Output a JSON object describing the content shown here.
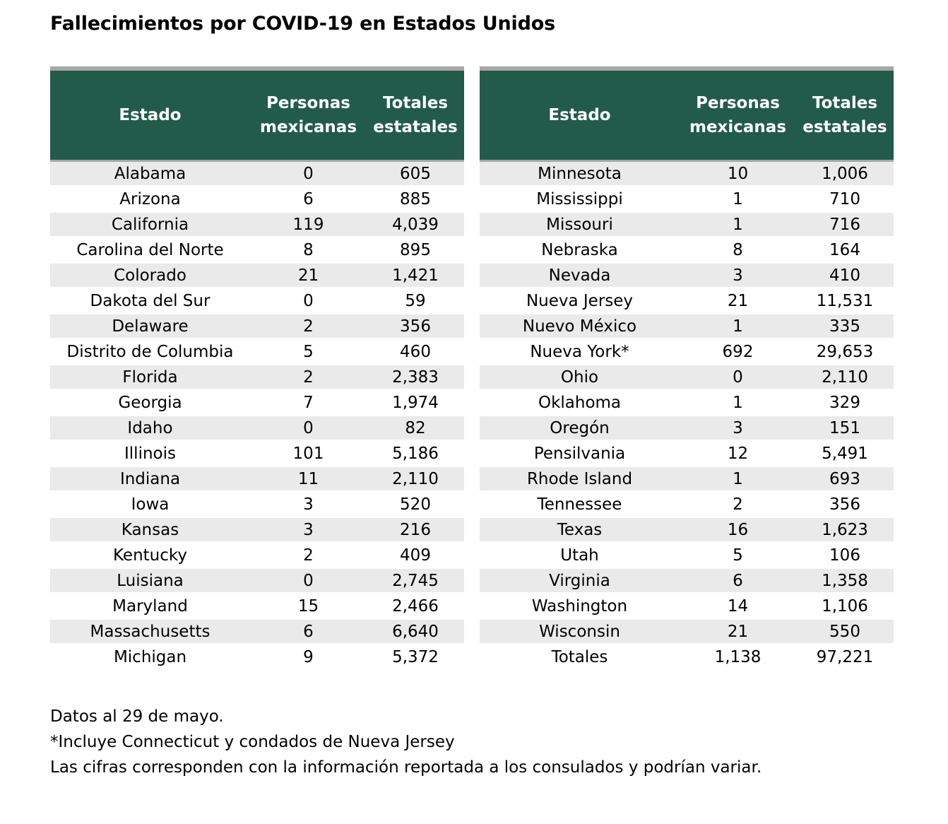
{
  "title": "Fallecimientos por COVID-19 en Estados Unidos",
  "headers": {
    "estado": "Estado",
    "personas_1": "Personas",
    "personas_2": "mexicanas",
    "totales_1": "Totales",
    "totales_2": "estatales"
  },
  "left_rows": [
    {
      "estado": "Alabama",
      "mex": "0",
      "total": "605"
    },
    {
      "estado": "Arizona",
      "mex": "6",
      "total": "885"
    },
    {
      "estado": "California",
      "mex": "119",
      "total": "4,039"
    },
    {
      "estado": "Carolina del Norte",
      "mex": "8",
      "total": "895"
    },
    {
      "estado": "Colorado",
      "mex": "21",
      "total": "1,421"
    },
    {
      "estado": "Dakota del Sur",
      "mex": "0",
      "total": "59"
    },
    {
      "estado": "Delaware",
      "mex": "2",
      "total": "356"
    },
    {
      "estado": "Distrito de Columbia",
      "mex": "5",
      "total": "460"
    },
    {
      "estado": "Florida",
      "mex": "2",
      "total": "2,383"
    },
    {
      "estado": "Georgia",
      "mex": "7",
      "total": "1,974"
    },
    {
      "estado": "Idaho",
      "mex": "0",
      "total": "82"
    },
    {
      "estado": "Illinois",
      "mex": "101",
      "total": "5,186"
    },
    {
      "estado": "Indiana",
      "mex": "11",
      "total": "2,110"
    },
    {
      "estado": "Iowa",
      "mex": "3",
      "total": "520"
    },
    {
      "estado": "Kansas",
      "mex": "3",
      "total": "216"
    },
    {
      "estado": "Kentucky",
      "mex": "2",
      "total": "409"
    },
    {
      "estado": "Luisiana",
      "mex": "0",
      "total": "2,745"
    },
    {
      "estado": "Maryland",
      "mex": "15",
      "total": "2,466"
    },
    {
      "estado": "Massachusetts",
      "mex": "6",
      "total": "6,640"
    },
    {
      "estado": "Michigan",
      "mex": "9",
      "total": "5,372"
    }
  ],
  "right_rows": [
    {
      "estado": "Minnesota",
      "mex": "10",
      "total": "1,006"
    },
    {
      "estado": "Mississippi",
      "mex": "1",
      "total": "710"
    },
    {
      "estado": "Missouri",
      "mex": "1",
      "total": "716"
    },
    {
      "estado": "Nebraska",
      "mex": "8",
      "total": "164"
    },
    {
      "estado": "Nevada",
      "mex": "3",
      "total": "410"
    },
    {
      "estado": "Nueva Jersey",
      "mex": "21",
      "total": "11,531"
    },
    {
      "estado": "Nuevo México",
      "mex": "1",
      "total": "335"
    },
    {
      "estado": "Nueva York*",
      "mex": "692",
      "total": "29,653"
    },
    {
      "estado": "Ohio",
      "mex": "0",
      "total": "2,110"
    },
    {
      "estado": "Oklahoma",
      "mex": "1",
      "total": "329"
    },
    {
      "estado": "Oregón",
      "mex": "3",
      "total": "151"
    },
    {
      "estado": "Pensilvania",
      "mex": "12",
      "total": "5,491"
    },
    {
      "estado": "Rhode Island",
      "mex": "1",
      "total": "693"
    },
    {
      "estado": "Tennessee",
      "mex": "2",
      "total": "356"
    },
    {
      "estado": "Texas",
      "mex": "16",
      "total": "1,623"
    },
    {
      "estado": "Utah",
      "mex": "5",
      "total": "106"
    },
    {
      "estado": "Virginia",
      "mex": "6",
      "total": "1,358"
    },
    {
      "estado": "Washington",
      "mex": "14",
      "total": "1,106"
    },
    {
      "estado": "Wisconsin",
      "mex": "21",
      "total": "550"
    }
  ],
  "totals": {
    "label": "Totales",
    "mex": "1,138",
    "total": "97,221"
  },
  "notes": [
    "Datos al 29 de mayo.",
    "*Incluye Connecticut y condados de Nueva Jersey",
    "Las cifras corresponden con la información reportada a los consulados y podrían variar."
  ],
  "colors": {
    "header_bg": "#225b4a",
    "stripe": "#eaeaea",
    "rule": "#a6a6a6"
  }
}
